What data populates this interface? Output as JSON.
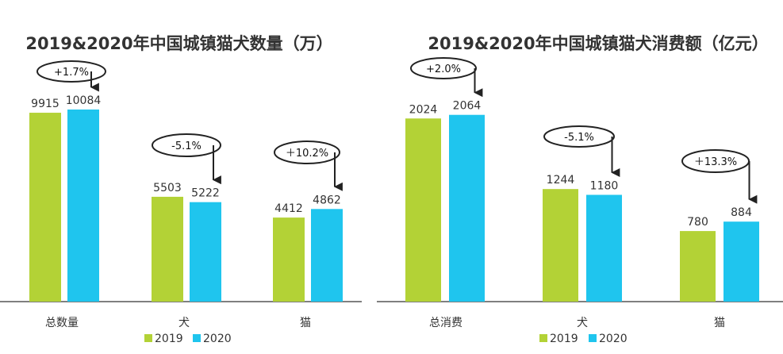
{
  "colors": {
    "s2019": "#b3d236",
    "s2020": "#1fc5ee",
    "axis": "#555555",
    "text": "#333333"
  },
  "chart_data": [
    {
      "type": "bar",
      "title": "2019&2020年中国城镇猫犬数量（万）",
      "categories": [
        "总数量",
        "犬",
        "猫"
      ],
      "series": [
        {
          "name": "2019",
          "values": [
            9915,
            5503,
            4412
          ]
        },
        {
          "name": "2020",
          "values": [
            10084,
            5222,
            4862
          ]
        }
      ],
      "value_labels": [
        [
          "9915",
          "5503",
          "4412"
        ],
        [
          "10084",
          "5222",
          "4862"
        ]
      ],
      "changes": [
        "+1.7%",
        "-5.1%",
        "＋10.2%"
      ],
      "legend": [
        "2019",
        "2020"
      ],
      "ylim": [
        0,
        11000
      ],
      "grid": false
    },
    {
      "type": "bar",
      "title": "2019&2020年中国城镇猫犬消费额（亿元）",
      "categories": [
        "总消费",
        "犬",
        "猫"
      ],
      "series": [
        {
          "name": "2019",
          "values": [
            2024,
            1244,
            780
          ]
        },
        {
          "name": "2020",
          "values": [
            2064,
            1180,
            884
          ]
        }
      ],
      "value_labels": [
        [
          "2024",
          "1244",
          "780"
        ],
        [
          "2064",
          "1180",
          "884"
        ]
      ],
      "changes": [
        "+2.0%",
        "-5.1%",
        "＋13.3%"
      ],
      "legend": [
        "2019",
        "2020"
      ],
      "ylim": [
        0,
        2200
      ],
      "grid": false
    }
  ]
}
